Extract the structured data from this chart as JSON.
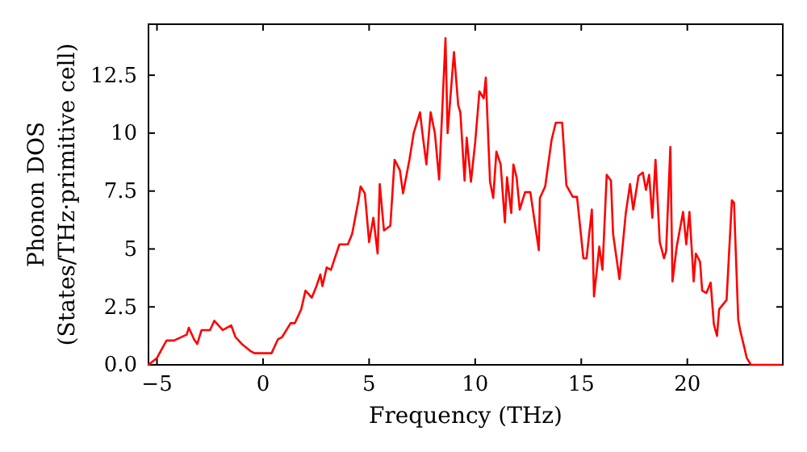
{
  "chart_data": {
    "type": "line",
    "xlabel": "Frequency (THz)",
    "ylabel": "Phonon DOS\n(States/THz·primitive cell)",
    "xlim": [
      -5.4,
      24.5
    ],
    "ylim": [
      0,
      14.7
    ],
    "xticks": [
      {
        "value": -5,
        "label": "−5"
      },
      0,
      5,
      10,
      15,
      20
    ],
    "yticks": [
      {
        "value": 0,
        "label": "0.0"
      },
      2.5,
      5,
      7.5,
      10,
      12.5
    ],
    "marker": "none",
    "line_style": "solid",
    "series": [
      {
        "color": "#ff0000",
        "x": [
          -5.4,
          -5,
          -4.55,
          -4.2,
          -3.6,
          -3.5,
          -3.25,
          -3.1,
          -2.9,
          -2.5,
          -2.3,
          -1.9,
          -1.5,
          -1.3,
          -1,
          -0.6,
          -0.4,
          0.4,
          0.7,
          0.9,
          1.3,
          1.5,
          1.8,
          2.0,
          2.3,
          2.5,
          2.7,
          2.8,
          3.0,
          3.2,
          3.6,
          4.0,
          4.2,
          4.5,
          4.6,
          4.8,
          5.0,
          5.2,
          5.4,
          5.5,
          5.7,
          6.0,
          6.2,
          6.45,
          6.6,
          6.9,
          7.1,
          7.4,
          7.5,
          7.7,
          7.9,
          8.1,
          8.3,
          8.6,
          8.7,
          9.0,
          9.2,
          9.3,
          9.5,
          9.6,
          9.8,
          10.0,
          10.2,
          10.4,
          10.5,
          10.7,
          10.85,
          11.0,
          11.2,
          11.4,
          11.5,
          11.7,
          11.8,
          11.95,
          12.1,
          12.35,
          12.6,
          12.8,
          13.0,
          13.05,
          13.3,
          13.6,
          13.8,
          14.1,
          14.3,
          14.6,
          14.8,
          15.1,
          15.25,
          15.5,
          15.6,
          15.85,
          16.0,
          16.2,
          16.4,
          16.5,
          16.8,
          17.1,
          17.3,
          17.45,
          17.7,
          17.9,
          18.05,
          18.2,
          18.35,
          18.5,
          18.7,
          18.9,
          19.0,
          19.2,
          19.3,
          19.5,
          19.8,
          19.95,
          20.1,
          20.3,
          20.4,
          20.6,
          20.7,
          20.9,
          21.1,
          21.25,
          21.4,
          21.5,
          21.85,
          22.1,
          22.2,
          22.4,
          22.5,
          22.7,
          22.8,
          23.0,
          24.4
        ],
        "values": [
          0,
          0.3,
          1.05,
          1.05,
          1.3,
          1.6,
          1.1,
          0.9,
          1.5,
          1.5,
          1.9,
          1.5,
          1.7,
          1.2,
          0.9,
          0.6,
          0.5,
          0.5,
          1.1,
          1.2,
          1.8,
          1.8,
          2.4,
          3.2,
          2.9,
          3.35,
          3.9,
          3.4,
          4.2,
          4.1,
          5.2,
          5.2,
          5.65,
          7.1,
          7.7,
          7.4,
          5.3,
          6.35,
          4.8,
          7.8,
          5.8,
          6.0,
          8.85,
          8.4,
          7.4,
          8.85,
          10,
          10.9,
          10.1,
          8.65,
          10.9,
          10,
          8.0,
          14.1,
          10,
          13.5,
          11.2,
          10.9,
          7.95,
          9.8,
          7.9,
          9.6,
          11.8,
          11.5,
          12.4,
          7.9,
          7.2,
          9.2,
          8.65,
          6.15,
          8.1,
          6.55,
          8.65,
          8.1,
          6.7,
          7.45,
          7.45,
          6.2,
          4.95,
          7.2,
          7.7,
          9.7,
          10.45,
          10.45,
          7.75,
          7.25,
          7.25,
          4.6,
          4.6,
          6.7,
          2.95,
          5.1,
          4.1,
          8.2,
          7.95,
          5.65,
          3.7,
          6.55,
          7.8,
          6.7,
          8.15,
          8.3,
          7.55,
          8.2,
          6.35,
          8.85,
          5.3,
          4.6,
          4.9,
          9.4,
          3.6,
          5.1,
          6.6,
          5.2,
          6.6,
          3.6,
          4.8,
          4.45,
          3.2,
          3.1,
          3.55,
          1.75,
          1.25,
          2.4,
          2.8,
          7.1,
          7.0,
          1.95,
          1.45,
          0.7,
          0.3,
          0,
          0
        ]
      }
    ]
  }
}
